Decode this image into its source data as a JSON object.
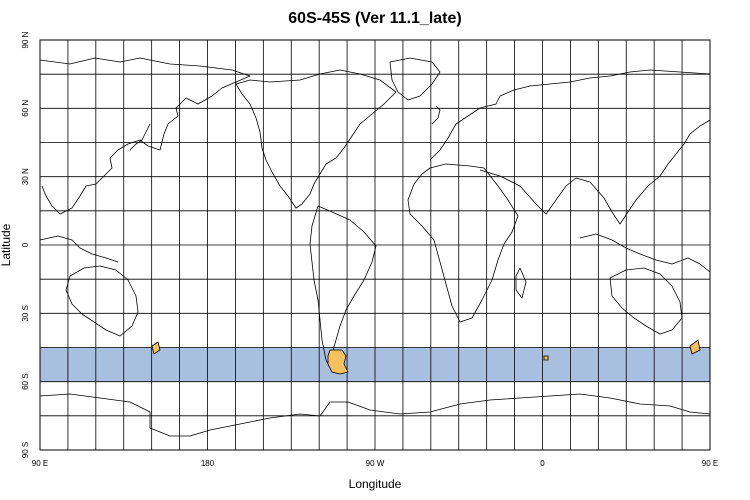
{
  "title": "60S-45S (Ver 11.1_late)",
  "map": {
    "xlabel": "Longitude",
    "ylabel": "Latitude",
    "x_ticks": [
      "90 E",
      "180",
      "90 W",
      "0",
      "90 E",
      "180"
    ],
    "y_ticks": [
      "90 N",
      "60 N",
      "30 N",
      "0",
      "30 S",
      "60 S",
      "90 S"
    ],
    "x_range_lon_east": [
      90,
      450
    ],
    "y_range_lat": [
      -90,
      90
    ],
    "grid_step_lon": 15,
    "grid_step_lat": 15,
    "highlight_band": {
      "lat_min": -60,
      "lat_max": -45,
      "color": "#a8bfe0"
    },
    "land_highlight_color": "#f5c060",
    "land_stroke_color": "#000000"
  }
}
